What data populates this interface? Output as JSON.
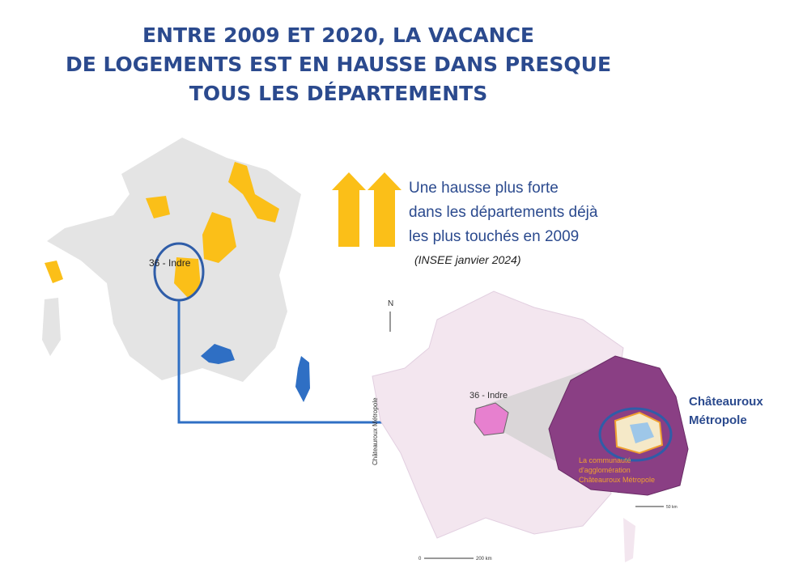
{
  "title": {
    "lines": [
      "ENTRE 2009 ET 2020, LA VACANCE",
      "DE LOGEMENTS EST EN HAUSSE DANS PRESQUE",
      "TOUS LES DÉPARTEMENTS"
    ]
  },
  "callout": {
    "lines": [
      "Une hausse plus forte",
      "dans les départements déjà",
      "les plus touchés en 2009"
    ],
    "source": "(INSEE janvier 2024)"
  },
  "left_map": {
    "label": "36 - Indre"
  },
  "right_map": {
    "north": "N",
    "label": "36 - Indre",
    "side_label": "Châteauroux Métropole",
    "inset_caption_lines": [
      "La communauté",
      "d'agglomération",
      "Châteauroux Métropole"
    ],
    "scale_start": "0",
    "scale_end": "200 km",
    "inset_scale": "50 km"
  },
  "highlight": {
    "name_lines": [
      "Châteauroux",
      "Métropole"
    ]
  }
}
